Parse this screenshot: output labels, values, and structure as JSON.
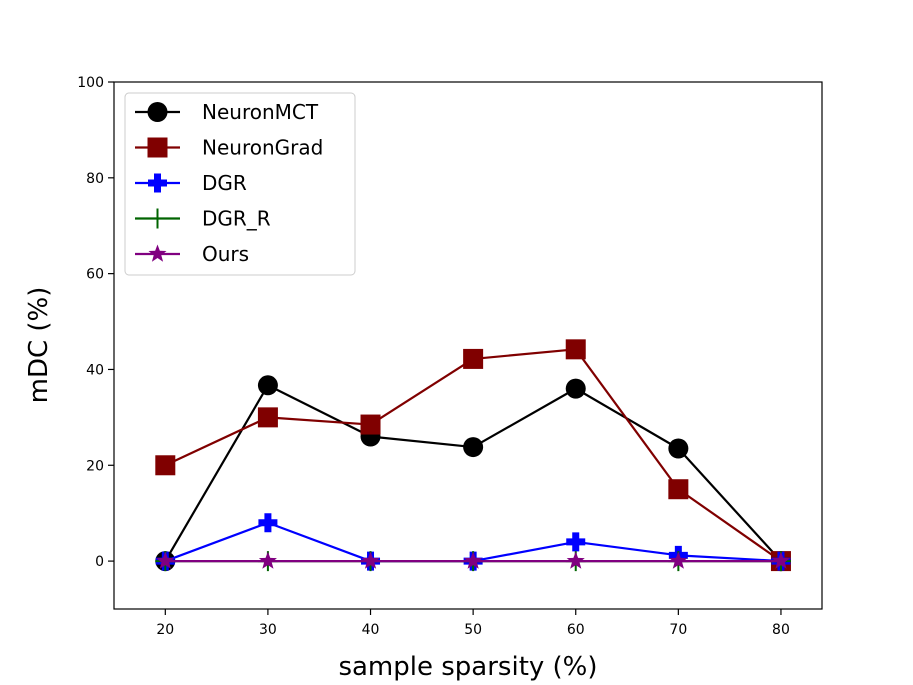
{
  "chart_data": {
    "type": "line",
    "title": "",
    "xlabel": "sample sparsity (%)",
    "ylabel": "mDC (%)",
    "x": [
      20,
      30,
      40,
      50,
      60,
      70,
      80
    ],
    "xticks": [
      "20",
      "30",
      "40",
      "50",
      "60",
      "70",
      "80"
    ],
    "yticks": [
      "0",
      "20",
      "40",
      "60",
      "80",
      "100"
    ],
    "xlim": [
      15,
      84
    ],
    "ylim": [
      -10,
      100
    ],
    "grid": false,
    "legend_position": "top-left",
    "series": [
      {
        "name": "NeuronMCT",
        "color": "#000000",
        "marker": "circle",
        "values": [
          0,
          36.7,
          26,
          23.8,
          36,
          23.5,
          0
        ]
      },
      {
        "name": "NeuronGrad",
        "color": "#800000",
        "marker": "square",
        "values": [
          20,
          30,
          28.5,
          42.2,
          44.2,
          15,
          0
        ]
      },
      {
        "name": "DGR",
        "color": "#0000ff",
        "marker": "plus",
        "values": [
          0,
          8,
          0,
          0,
          4,
          1.2,
          0
        ]
      },
      {
        "name": "DGR_R",
        "color": "#006400",
        "marker": "thin-plus",
        "values": [
          0,
          0,
          0,
          0,
          0,
          0,
          0
        ]
      },
      {
        "name": "Ours",
        "color": "#800080",
        "marker": "star",
        "values": [
          0,
          0,
          0,
          0,
          0,
          0,
          0
        ]
      }
    ]
  }
}
